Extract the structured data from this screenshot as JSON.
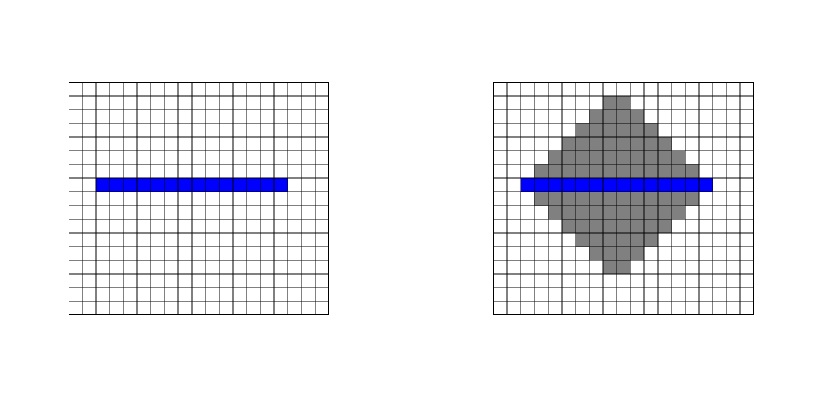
{
  "colors": {
    "background": "#ffffff",
    "grid_line": "#000000",
    "line_cells": "#0000ff",
    "diamond_cells": "#808080"
  },
  "grids": [
    {
      "id": "left",
      "cols": 19,
      "rows": 17,
      "line_row": 7,
      "line_cols": [
        2,
        15
      ],
      "diamond": null
    },
    {
      "id": "right",
      "cols": 19,
      "rows": 17,
      "line_row": 7,
      "line_cols": [
        2,
        15
      ],
      "diamond": {
        "center_col": 8.5,
        "center_row": 7,
        "rows": [
          [
            1,
            8,
            9
          ],
          [
            2,
            7,
            10
          ],
          [
            3,
            6,
            11
          ],
          [
            4,
            5,
            12
          ],
          [
            5,
            4,
            13
          ],
          [
            6,
            3,
            14
          ],
          [
            7,
            3,
            14
          ],
          [
            8,
            3,
            14
          ],
          [
            9,
            4,
            13
          ],
          [
            10,
            5,
            12
          ],
          [
            11,
            6,
            11
          ],
          [
            12,
            7,
            10
          ],
          [
            13,
            8,
            9
          ]
        ]
      }
    }
  ]
}
